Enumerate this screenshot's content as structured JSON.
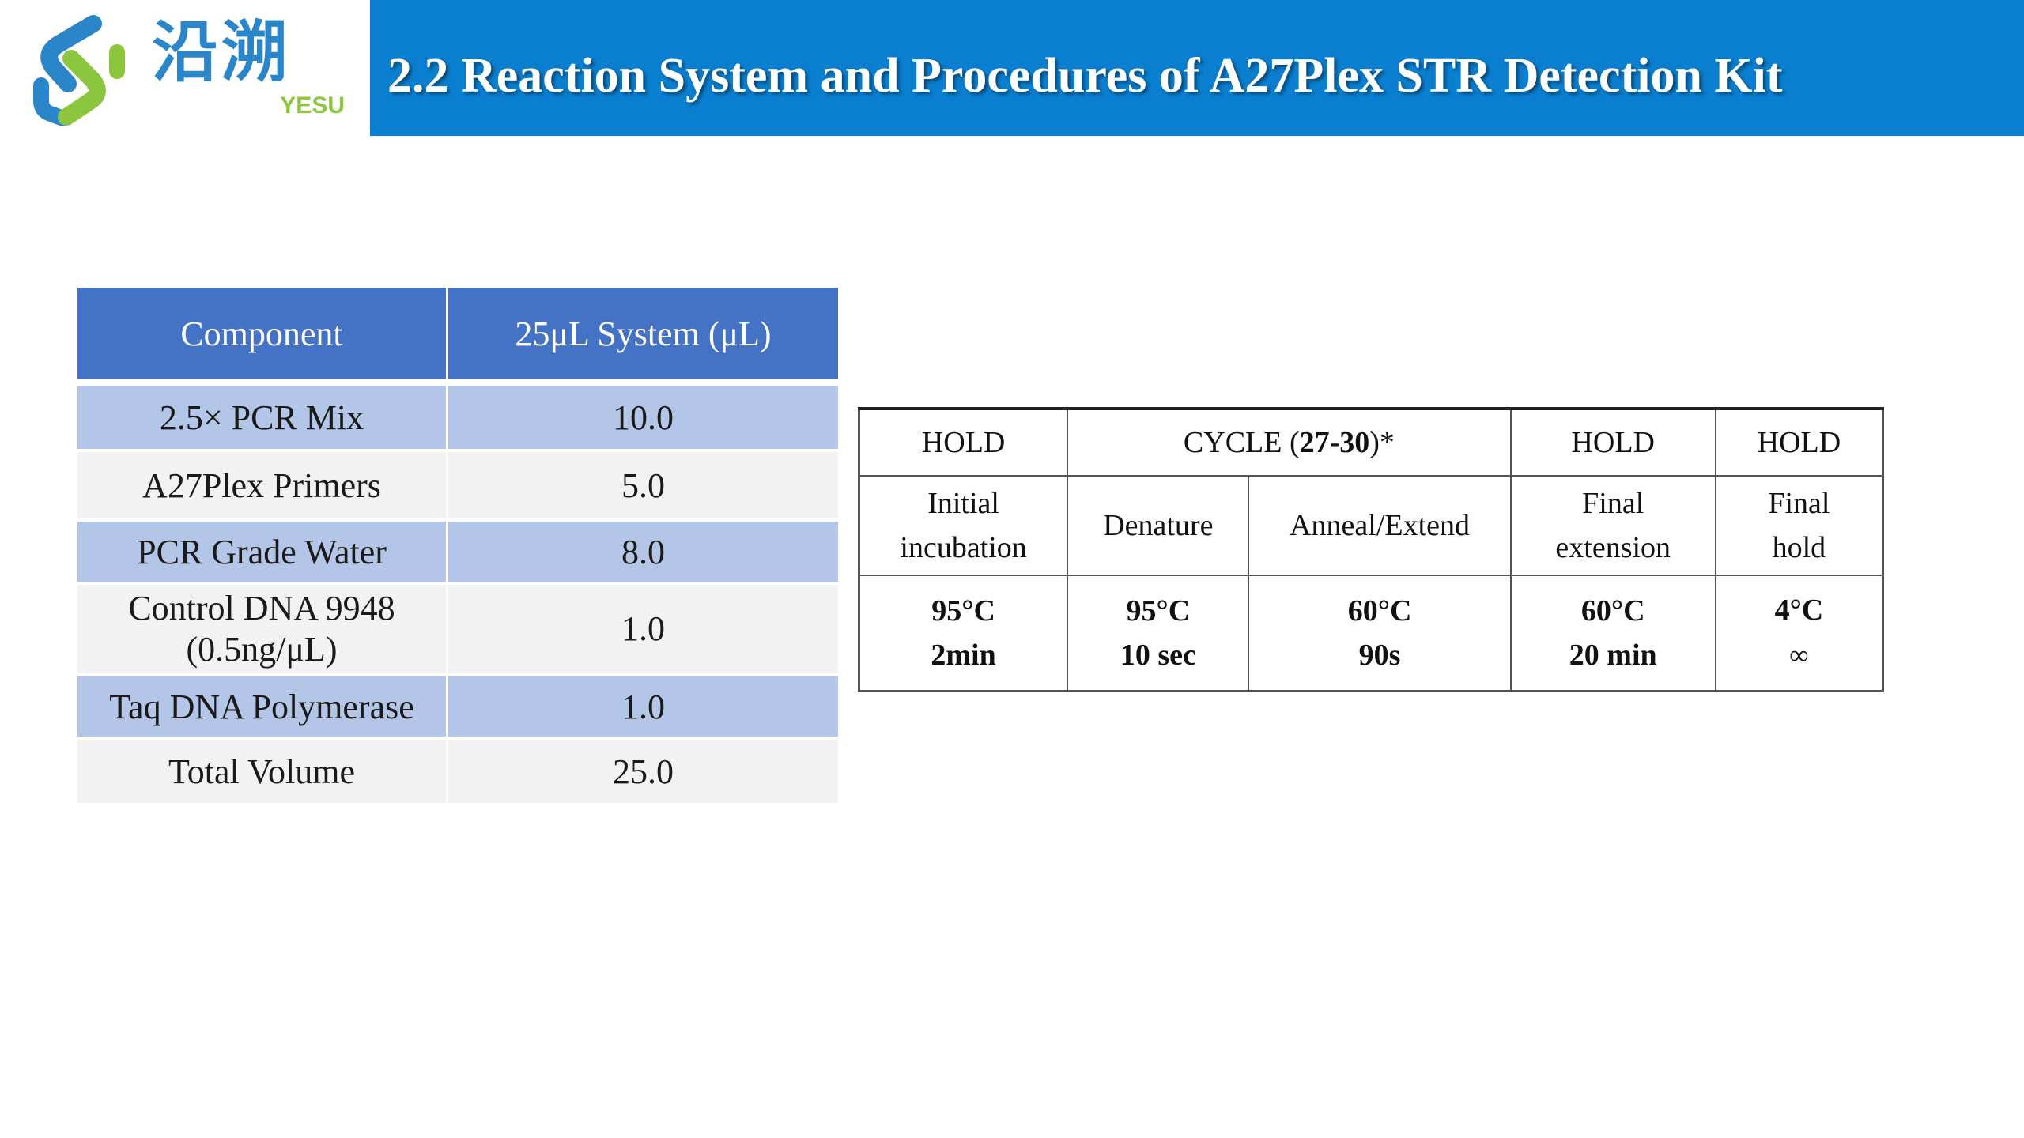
{
  "header": {
    "logo_cn": "沿溯",
    "logo_en": "YESU",
    "title": "2.2 Reaction System and Procedures of A27Plex STR Detection Kit",
    "colors": {
      "bar": "#0a7fd0",
      "logo_blue": "#2b86c9",
      "logo_green": "#8cc63f"
    }
  },
  "component_table": {
    "headers": [
      "Component",
      "25μL System (μL)"
    ],
    "rows": [
      {
        "component": "2.5× PCR Mix",
        "volume": "10.0"
      },
      {
        "component": "A27Plex Primers",
        "volume": "5.0"
      },
      {
        "component": "PCR Grade Water",
        "volume": "8.0"
      },
      {
        "component_line1": "Control DNA 9948",
        "component_line2": "(0.5ng/μL)",
        "volume": "1.0"
      },
      {
        "component": "Taq DNA Polymerase",
        "volume": "1.0"
      },
      {
        "component": "Total Volume",
        "volume": "25.0"
      }
    ],
    "colors": {
      "header": "#4472c4",
      "band": "#b4c6e7",
      "light": "#f2f2f2"
    }
  },
  "pcr_table": {
    "header": {
      "hold1": "HOLD",
      "cycle_prefix": "CYCLE (",
      "cycle_count": "27-30",
      "cycle_suffix": ")*",
      "hold2": "HOLD",
      "hold3": "HOLD"
    },
    "steps": [
      {
        "line1": "Initial",
        "line2": "incubation",
        "temp": "95°C",
        "time": "2min"
      },
      {
        "line1": "Denature",
        "temp": "95°C",
        "time": "10 sec"
      },
      {
        "line1": "Anneal/Extend",
        "temp": "60°C",
        "time": "90s"
      },
      {
        "line1": "Final",
        "line2": "extension",
        "temp": "60°C",
        "time": "20 min"
      },
      {
        "line1": "Final",
        "line2": "hold",
        "temp": "4°C",
        "time": "∞"
      }
    ]
  }
}
